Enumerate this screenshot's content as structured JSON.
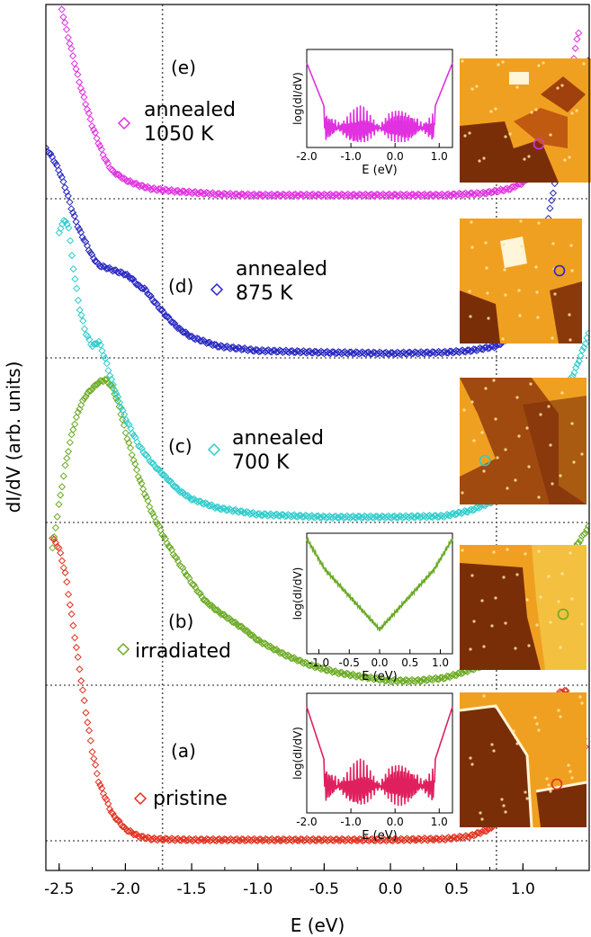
{
  "chart_data": {
    "type": "scatter",
    "xlabel": "E (eV)",
    "ylabel": "dI/dV (arb. units)",
    "xlim": [
      -2.6,
      1.5
    ],
    "xticks": [
      "-2.5",
      "-2.0",
      "-1.5",
      "-1.0",
      "-0.5",
      "0.0",
      "0.5",
      "1.0"
    ],
    "reference_lines_x": [
      -1.72,
      0.8
    ],
    "series": [
      {
        "key": "a",
        "letter": "(a)",
        "name": "pristine",
        "color": "#e0301e",
        "baseline": 935,
        "points": [
          [
            -2.55,
            598
          ],
          [
            -2.5,
            610
          ],
          [
            -2.45,
            640
          ],
          [
            -2.4,
            690
          ],
          [
            -2.35,
            740
          ],
          [
            -2.3,
            790
          ],
          [
            -2.25,
            835
          ],
          [
            -2.2,
            870
          ],
          [
            -2.1,
            905
          ],
          [
            -2.0,
            922
          ],
          [
            -1.9,
            930
          ],
          [
            -1.8,
            933
          ],
          [
            -1.5,
            934
          ],
          [
            -1.0,
            934
          ],
          [
            -0.5,
            934
          ],
          [
            0.0,
            934
          ],
          [
            0.4,
            933
          ],
          [
            0.6,
            930
          ],
          [
            0.75,
            922
          ],
          [
            0.85,
            905
          ],
          [
            0.95,
            880
          ],
          [
            1.05,
            845
          ],
          [
            1.15,
            810
          ],
          [
            1.22,
            785
          ],
          [
            1.28,
            770
          ],
          [
            1.32,
            768
          ],
          [
            1.37,
            778
          ],
          [
            1.42,
            800
          ],
          [
            1.47,
            830
          ]
        ]
      },
      {
        "key": "b",
        "letter": "(b)",
        "name": "irradiated",
        "color": "#6aaa24",
        "baseline": 762,
        "points": [
          [
            -2.55,
            610
          ],
          [
            -2.5,
            560
          ],
          [
            -2.45,
            515
          ],
          [
            -2.4,
            480
          ],
          [
            -2.35,
            455
          ],
          [
            -2.3,
            440
          ],
          [
            -2.25,
            432
          ],
          [
            -2.2,
            425
          ],
          [
            -2.15,
            422
          ],
          [
            -2.1,
            430
          ],
          [
            -2.05,
            450
          ],
          [
            -2.0,
            480
          ],
          [
            -1.9,
            530
          ],
          [
            -1.8,
            570
          ],
          [
            -1.7,
            600
          ],
          [
            -1.6,
            625
          ],
          [
            -1.5,
            648
          ],
          [
            -1.4,
            668
          ],
          [
            -1.3,
            680
          ],
          [
            -1.2,
            690
          ],
          [
            -1.1,
            700
          ],
          [
            -1.0,
            712
          ],
          [
            -0.8,
            728
          ],
          [
            -0.6,
            740
          ],
          [
            -0.4,
            748
          ],
          [
            -0.2,
            753
          ],
          [
            0.0,
            757
          ],
          [
            0.2,
            757
          ],
          [
            0.4,
            754
          ],
          [
            0.5,
            750
          ],
          [
            0.6,
            745
          ],
          [
            0.7,
            740
          ],
          [
            0.8,
            733
          ],
          [
            0.9,
            720
          ],
          [
            1.0,
            700
          ],
          [
            1.1,
            675
          ],
          [
            1.2,
            650
          ],
          [
            1.3,
            630
          ],
          [
            1.4,
            608
          ],
          [
            1.5,
            585
          ]
        ]
      },
      {
        "key": "c",
        "letter": "(c)",
        "name": "annealed\n700 K",
        "color": "#2ecccc",
        "baseline": 581,
        "points": [
          [
            -2.5,
            260
          ],
          [
            -2.47,
            245
          ],
          [
            -2.43,
            250
          ],
          [
            -2.4,
            290
          ],
          [
            -2.35,
            340
          ],
          [
            -2.3,
            370
          ],
          [
            -2.25,
            385
          ],
          [
            -2.2,
            380
          ],
          [
            -2.15,
            400
          ],
          [
            -2.1,
            425
          ],
          [
            -2.05,
            445
          ],
          [
            -2.0,
            465
          ],
          [
            -1.9,
            495
          ],
          [
            -1.8,
            515
          ],
          [
            -1.7,
            530
          ],
          [
            -1.6,
            545
          ],
          [
            -1.5,
            555
          ],
          [
            -1.3,
            565
          ],
          [
            -1.0,
            572
          ],
          [
            -0.5,
            575
          ],
          [
            0.0,
            575
          ],
          [
            0.4,
            574
          ],
          [
            0.6,
            568
          ],
          [
            0.8,
            556
          ],
          [
            0.9,
            545
          ],
          [
            1.0,
            525
          ],
          [
            1.1,
            500
          ],
          [
            1.2,
            470
          ],
          [
            1.3,
            440
          ],
          [
            1.4,
            410
          ],
          [
            1.5,
            370
          ]
        ]
      },
      {
        "key": "d",
        "letter": "(d)",
        "name": "annealed\n875 K",
        "color": "#2626c0",
        "baseline": 398,
        "points": [
          [
            -2.6,
            165
          ],
          [
            -2.55,
            175
          ],
          [
            -2.5,
            190
          ],
          [
            -2.45,
            210
          ],
          [
            -2.4,
            235
          ],
          [
            -2.35,
            255
          ],
          [
            -2.3,
            270
          ],
          [
            -2.25,
            285
          ],
          [
            -2.2,
            295
          ],
          [
            -2.1,
            300
          ],
          [
            -2.0,
            305
          ],
          [
            -1.95,
            310
          ],
          [
            -1.9,
            318
          ],
          [
            -1.85,
            322
          ],
          [
            -1.8,
            332
          ],
          [
            -1.7,
            350
          ],
          [
            -1.6,
            365
          ],
          [
            -1.5,
            375
          ],
          [
            -1.3,
            385
          ],
          [
            -1.0,
            390
          ],
          [
            -0.5,
            392
          ],
          [
            0.0,
            393
          ],
          [
            0.4,
            392
          ],
          [
            0.6,
            390
          ],
          [
            0.8,
            385
          ],
          [
            0.95,
            370
          ],
          [
            1.05,
            340
          ],
          [
            1.12,
            300
          ],
          [
            1.17,
            260
          ],
          [
            1.22,
            220
          ],
          [
            1.27,
            180
          ],
          [
            1.3,
            145
          ],
          [
            1.33,
            110
          ],
          [
            1.37,
            100
          ],
          [
            1.4,
            110
          ],
          [
            1.45,
            90
          ],
          [
            1.5,
            62
          ]
        ]
      },
      {
        "key": "e",
        "letter": "(e)",
        "name": "annealed\n1050 K",
        "color": "#e030e0",
        "baseline": 221,
        "points": [
          [
            -2.48,
            10
          ],
          [
            -2.45,
            30
          ],
          [
            -2.4,
            60
          ],
          [
            -2.35,
            90
          ],
          [
            -2.3,
            115
          ],
          [
            -2.25,
            140
          ],
          [
            -2.2,
            160
          ],
          [
            -2.15,
            178
          ],
          [
            -2.1,
            190
          ],
          [
            -2.0,
            200
          ],
          [
            -1.9,
            206
          ],
          [
            -1.8,
            210
          ],
          [
            -1.6,
            213
          ],
          [
            -1.3,
            216
          ],
          [
            -1.0,
            217
          ],
          [
            -0.5,
            217
          ],
          [
            0.0,
            217
          ],
          [
            0.4,
            217
          ],
          [
            0.7,
            215
          ],
          [
            0.9,
            210
          ],
          [
            1.0,
            203
          ],
          [
            1.1,
            190
          ],
          [
            1.2,
            170
          ],
          [
            1.27,
            145
          ],
          [
            1.32,
            115
          ],
          [
            1.36,
            85
          ],
          [
            1.4,
            50
          ],
          [
            1.43,
            30
          ]
        ]
      }
    ],
    "insets": [
      {
        "key": "e",
        "color": "#e030e0",
        "xlim": [
          -2.0,
          1.3
        ],
        "xticks": [
          "-2.0",
          "-1.0",
          "0.0",
          "1.0"
        ],
        "xlabel": "E (eV)",
        "ylabel": "log(dI/dV)"
      },
      {
        "key": "b",
        "color": "#6aaa24",
        "xlim": [
          -1.2,
          1.2
        ],
        "xticks": [
          "-1.0",
          "-0.5",
          "0.0",
          "0.5",
          "1.0"
        ],
        "xlabel": "E (eV)",
        "ylabel": "log(dI/dV)"
      },
      {
        "key": "a",
        "color": "#e0205e",
        "xlim": [
          -2.0,
          1.3
        ],
        "xticks": [
          "-2.0",
          "-1.0",
          "0.0",
          "1.0"
        ],
        "xlabel": "E (eV)",
        "ylabel": "log(dI/dV)"
      }
    ],
    "stm_images": [
      {
        "key": "e",
        "marker_color": "#e030e0"
      },
      {
        "key": "d",
        "marker_color": "#2626c0"
      },
      {
        "key": "c",
        "marker_color": "#2ecccc"
      },
      {
        "key": "b",
        "marker_color": "#6aaa24"
      },
      {
        "key": "a",
        "marker_color": "#e0301e"
      }
    ]
  }
}
